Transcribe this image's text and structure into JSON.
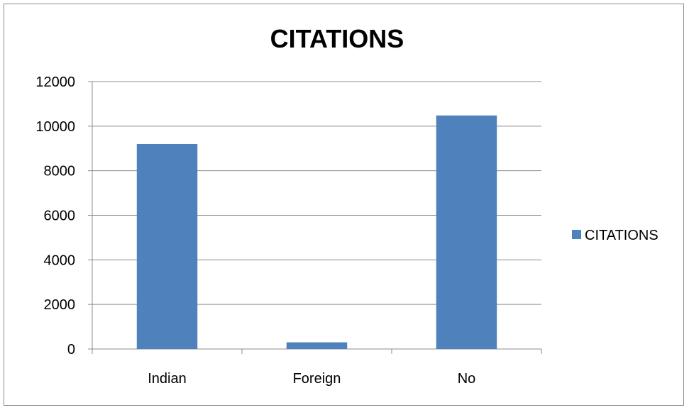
{
  "chart_data": {
    "type": "bar",
    "title": "CITATIONS",
    "xlabel": "",
    "ylabel": "",
    "categories": [
      "Indian",
      "Foreign",
      "No"
    ],
    "series": [
      {
        "name": "CITATIONS",
        "values": [
          9200,
          300,
          10480
        ],
        "color": "#4f81bd"
      }
    ],
    "ylim": [
      0,
      12000
    ],
    "yticks": [
      0,
      2000,
      4000,
      6000,
      8000,
      10000,
      12000
    ],
    "grid": true,
    "legend_position": "right"
  }
}
